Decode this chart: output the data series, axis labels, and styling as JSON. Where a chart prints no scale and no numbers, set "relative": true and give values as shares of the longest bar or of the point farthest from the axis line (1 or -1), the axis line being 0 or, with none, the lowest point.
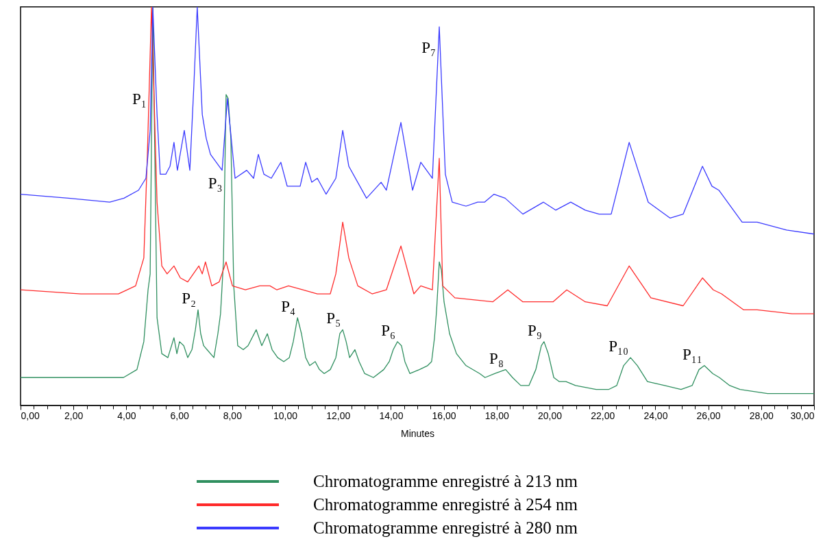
{
  "chart_data": {
    "type": "line",
    "relative": true,
    "xlabel": "Minutes",
    "xlim": [
      0,
      30
    ],
    "xticks": [
      {
        "value": 0,
        "label": "0,00"
      },
      {
        "value": 0.5,
        "label": null
      },
      {
        "value": 1,
        "label": null
      },
      {
        "value": 1.5,
        "label": null
      },
      {
        "value": 2,
        "label": "2,00"
      },
      {
        "value": 2.5,
        "label": null
      },
      {
        "value": 3,
        "label": null
      },
      {
        "value": 3.5,
        "label": null
      },
      {
        "value": 4,
        "label": "4,00"
      },
      {
        "value": 4.5,
        "label": null
      },
      {
        "value": 5,
        "label": null
      },
      {
        "value": 5.5,
        "label": null
      },
      {
        "value": 6,
        "label": "6,00"
      },
      {
        "value": 6.5,
        "label": null
      },
      {
        "value": 7,
        "label": null
      },
      {
        "value": 7.5,
        "label": null
      },
      {
        "value": 8,
        "label": "8,00"
      },
      {
        "value": 8.5,
        "label": null
      },
      {
        "value": 9,
        "label": null
      },
      {
        "value": 9.5,
        "label": null
      },
      {
        "value": 10,
        "label": "10,00"
      },
      {
        "value": 10.5,
        "label": null
      },
      {
        "value": 11,
        "label": null
      },
      {
        "value": 11.5,
        "label": null
      },
      {
        "value": 12,
        "label": "12,00"
      },
      {
        "value": 12.5,
        "label": null
      },
      {
        "value": 13,
        "label": null
      },
      {
        "value": 13.5,
        "label": null
      },
      {
        "value": 14,
        "label": "14,00"
      },
      {
        "value": 14.5,
        "label": null
      },
      {
        "value": 15,
        "label": null
      },
      {
        "value": 15.5,
        "label": null
      },
      {
        "value": 16,
        "label": "16,00"
      },
      {
        "value": 16.5,
        "label": null
      },
      {
        "value": 17,
        "label": null
      },
      {
        "value": 17.5,
        "label": null
      },
      {
        "value": 18,
        "label": "18,00"
      },
      {
        "value": 18.5,
        "label": null
      },
      {
        "value": 19,
        "label": null
      },
      {
        "value": 19.5,
        "label": null
      },
      {
        "value": 20,
        "label": "20,00"
      },
      {
        "value": 20.5,
        "label": null
      },
      {
        "value": 21,
        "label": null
      },
      {
        "value": 21.5,
        "label": null
      },
      {
        "value": 22,
        "label": "22,00"
      },
      {
        "value": 22.5,
        "label": null
      },
      {
        "value": 23,
        "label": null
      },
      {
        "value": 23.5,
        "label": null
      },
      {
        "value": 24,
        "label": "24,00"
      },
      {
        "value": 24.5,
        "label": null
      },
      {
        "value": 25,
        "label": null
      },
      {
        "value": 25.5,
        "label": null
      },
      {
        "value": 26,
        "label": "26,00"
      },
      {
        "value": 26.5,
        "label": null
      },
      {
        "value": 27,
        "label": null
      },
      {
        "value": 27.5,
        "label": null
      },
      {
        "value": 28,
        "label": "28,00"
      },
      {
        "value": 28.5,
        "label": null
      },
      {
        "value": 29,
        "label": null
      },
      {
        "value": 29.5,
        "label": null
      },
      {
        "value": 30,
        "label": "30,00"
      }
    ],
    "legend": "bottom",
    "series": [
      {
        "name": "Chromatogramme enregistré à 213 nm",
        "color": "#2f8f5f",
        "x": [
          0,
          1.81,
          3.89,
          4.4,
          4.66,
          4.82,
          4.9,
          5,
          5.16,
          5.34,
          5.57,
          5.8,
          5.91,
          6.01,
          6.17,
          6.32,
          6.48,
          6.61,
          6.71,
          6.81,
          6.92,
          7.05,
          7.31,
          7.46,
          7.56,
          7.67,
          7.77,
          7.85,
          7.95,
          8.06,
          8.21,
          8.42,
          8.6,
          8.91,
          9.12,
          9.33,
          9.51,
          9.72,
          9.95,
          10.16,
          10.31,
          10.47,
          10.62,
          10.78,
          10.93,
          11.14,
          11.3,
          11.48,
          11.71,
          11.92,
          12.07,
          12.18,
          12.31,
          12.44,
          12.64,
          12.8,
          13.01,
          13.34,
          13.73,
          13.94,
          14.09,
          14.25,
          14.4,
          14.53,
          14.72,
          15.08,
          15.39,
          15.54,
          15.65,
          15.73,
          15.83,
          15.91,
          16.01,
          16.22,
          16.48,
          16.84,
          17.36,
          17.56,
          17.93,
          18.34,
          18.6,
          18.91,
          19.22,
          19.48,
          19.69,
          19.79,
          19.95,
          20.16,
          20.36,
          20.62,
          20.98,
          21.76,
          22.23,
          22.54,
          22.8,
          23.06,
          23.32,
          23.7,
          24.35,
          24.97,
          25.39,
          25.65,
          25.85,
          26.17,
          26.42,
          26.81,
          27.2,
          28.24,
          30
        ],
        "values": [
          0.07,
          0.07,
          0.07,
          0.09,
          0.16,
          0.29,
          0.33,
          1,
          0.22,
          0.13,
          0.12,
          0.17,
          0.13,
          0.16,
          0.15,
          0.12,
          0.14,
          0.19,
          0.24,
          0.18,
          0.15,
          0.14,
          0.12,
          0.18,
          0.23,
          0.36,
          0.78,
          0.77,
          0.67,
          0.3,
          0.15,
          0.14,
          0.15,
          0.19,
          0.15,
          0.18,
          0.14,
          0.12,
          0.11,
          0.12,
          0.16,
          0.22,
          0.18,
          0.12,
          0.1,
          0.11,
          0.09,
          0.08,
          0.09,
          0.12,
          0.18,
          0.19,
          0.16,
          0.12,
          0.14,
          0.11,
          0.08,
          0.07,
          0.09,
          0.11,
          0.14,
          0.16,
          0.15,
          0.11,
          0.08,
          0.09,
          0.1,
          0.11,
          0.17,
          0.24,
          0.36,
          0.34,
          0.26,
          0.18,
          0.13,
          0.1,
          0.08,
          0.07,
          0.08,
          0.09,
          0.07,
          0.05,
          0.05,
          0.09,
          0.15,
          0.16,
          0.13,
          0.07,
          0.06,
          0.06,
          0.05,
          0.04,
          0.04,
          0.05,
          0.1,
          0.12,
          0.1,
          0.06,
          0.05,
          0.04,
          0.05,
          0.09,
          0.1,
          0.08,
          0.07,
          0.05,
          0.04,
          0.03,
          0.03
        ]
      },
      {
        "name": "Chromatogramme enregistré à 254 nm",
        "color": "#ff2a2a",
        "x": [
          0,
          2.28,
          3.7,
          4.35,
          4.66,
          4.79,
          4.95,
          5.16,
          5.34,
          5.54,
          5.8,
          6.04,
          6.32,
          6.74,
          6.87,
          6.99,
          7.23,
          7.51,
          7.77,
          8.01,
          8.5,
          9.04,
          9.43,
          9.69,
          10.13,
          10.67,
          11.22,
          11.71,
          11.92,
          12.18,
          12.41,
          12.75,
          13.29,
          13.83,
          14.38,
          14.87,
          15.13,
          15.57,
          15.83,
          15.96,
          16.42,
          17.85,
          18.42,
          18.99,
          19.77,
          20.13,
          20.65,
          21.35,
          22.18,
          23.01,
          23.83,
          25.05,
          25.78,
          26.19,
          26.5,
          27.33,
          27.85,
          29.17,
          30
        ],
        "values": [
          0.29,
          0.28,
          0.28,
          0.3,
          0.37,
          0.62,
          1,
          0.51,
          0.35,
          0.33,
          0.35,
          0.32,
          0.31,
          0.35,
          0.33,
          0.36,
          0.3,
          0.31,
          0.36,
          0.3,
          0.29,
          0.3,
          0.3,
          0.29,
          0.3,
          0.29,
          0.28,
          0.28,
          0.33,
          0.46,
          0.37,
          0.3,
          0.28,
          0.29,
          0.4,
          0.28,
          0.3,
          0.29,
          0.62,
          0.3,
          0.27,
          0.26,
          0.29,
          0.26,
          0.26,
          0.26,
          0.29,
          0.26,
          0.25,
          0.35,
          0.27,
          0.25,
          0.32,
          0.29,
          0.28,
          0.24,
          0.24,
          0.23,
          0.23
        ]
      },
      {
        "name": "Chromatogramme enregistré à 280 nm",
        "color": "#3a3aff",
        "x": [
          0,
          1.81,
          3.37,
          3.91,
          4.46,
          4.74,
          4.9,
          5,
          5.16,
          5.28,
          5.49,
          5.65,
          5.8,
          5.93,
          6.19,
          6.4,
          6.55,
          6.68,
          6.87,
          7.02,
          7.18,
          7.62,
          7.82,
          8.11,
          8.55,
          8.81,
          8.99,
          9.2,
          9.48,
          9.84,
          10.08,
          10.57,
          10.78,
          11.01,
          11.22,
          11.55,
          11.92,
          12.18,
          12.41,
          13.08,
          13.63,
          13.83,
          14.38,
          14.82,
          15.13,
          15.57,
          15.83,
          16.06,
          16.32,
          16.84,
          17.28,
          17.54,
          17.9,
          18.32,
          18.99,
          19.77,
          20.23,
          20.8,
          21.35,
          21.87,
          22.33,
          23.01,
          23.73,
          24.56,
          25.05,
          25.78,
          26.14,
          26.4,
          27.28,
          27.85,
          28.96,
          30
        ],
        "values": [
          0.53,
          0.52,
          0.51,
          0.52,
          0.54,
          0.57,
          0.69,
          1,
          0.73,
          0.58,
          0.58,
          0.6,
          0.66,
          0.59,
          0.69,
          0.59,
          0.8,
          1,
          0.73,
          0.67,
          0.63,
          0.59,
          0.77,
          0.57,
          0.59,
          0.57,
          0.63,
          0.58,
          0.57,
          0.61,
          0.55,
          0.55,
          0.61,
          0.56,
          0.57,
          0.53,
          0.57,
          0.69,
          0.6,
          0.52,
          0.56,
          0.54,
          0.71,
          0.54,
          0.61,
          0.57,
          0.95,
          0.58,
          0.51,
          0.5,
          0.51,
          0.51,
          0.53,
          0.52,
          0.48,
          0.51,
          0.49,
          0.51,
          0.49,
          0.48,
          0.48,
          0.66,
          0.51,
          0.47,
          0.48,
          0.6,
          0.55,
          0.54,
          0.46,
          0.46,
          0.44,
          0.43
        ]
      }
    ],
    "annotations": [
      {
        "text": "P₁",
        "x": 4.84,
        "y": 0.74
      },
      {
        "text": "P₂",
        "x": 6.71,
        "y": 0.24
      },
      {
        "text": "P₃",
        "x": 7.71,
        "y": 0.53
      },
      {
        "text": "P₄",
        "x": 10.47,
        "y": 0.22
      },
      {
        "text": "P₅",
        "x": 12.18,
        "y": 0.19
      },
      {
        "text": "P₆",
        "x": 14.25,
        "y": 0.16
      },
      {
        "text": "P₇",
        "x": 15.78,
        "y": 0.87
      },
      {
        "text": "P₈",
        "x": 18.34,
        "y": 0.09
      },
      {
        "text": "P₉",
        "x": 19.79,
        "y": 0.16
      },
      {
        "text": "P₁₀",
        "x": 23.06,
        "y": 0.12
      },
      {
        "text": "P₁₁",
        "x": 25.85,
        "y": 0.1
      }
    ]
  }
}
